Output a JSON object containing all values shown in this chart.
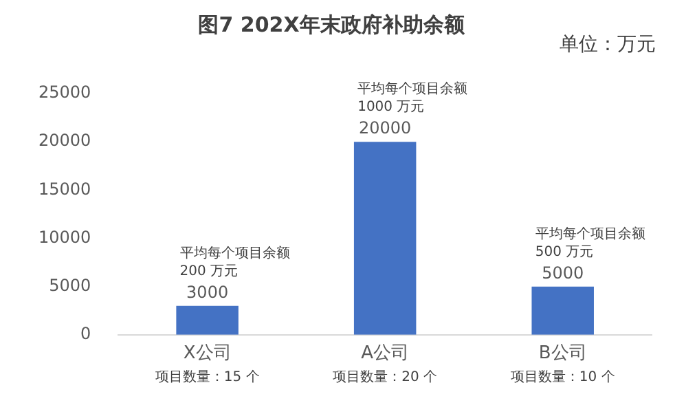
{
  "chart_data": {
    "type": "bar",
    "title": "图7 202X年末政府补助余额",
    "categories": [
      "X公司",
      "A公司",
      "B公司"
    ],
    "values": [
      3000,
      20000,
      5000
    ],
    "color": "#4472c4",
    "ylim": [
      0,
      25000
    ],
    "yticks": [
      0,
      5000,
      10000,
      15000,
      20000,
      25000
    ],
    "grid": false,
    "legend": false,
    "data_labels": true,
    "annotations": [
      "单位：万元",
      {
        "text": "平均每个项目余额\n200 万元",
        "x": "X公司",
        "y": 3000
      },
      {
        "text": "平均每个项目余额\n1000 万元",
        "x": "A公司",
        "y": 20000
      },
      {
        "text": "平均每个项目余额\n500 万元",
        "x": "B公司",
        "y": 5000
      },
      "项目数量：15 个",
      "项目数量：20 个",
      "项目数量：10 个"
    ]
  }
}
